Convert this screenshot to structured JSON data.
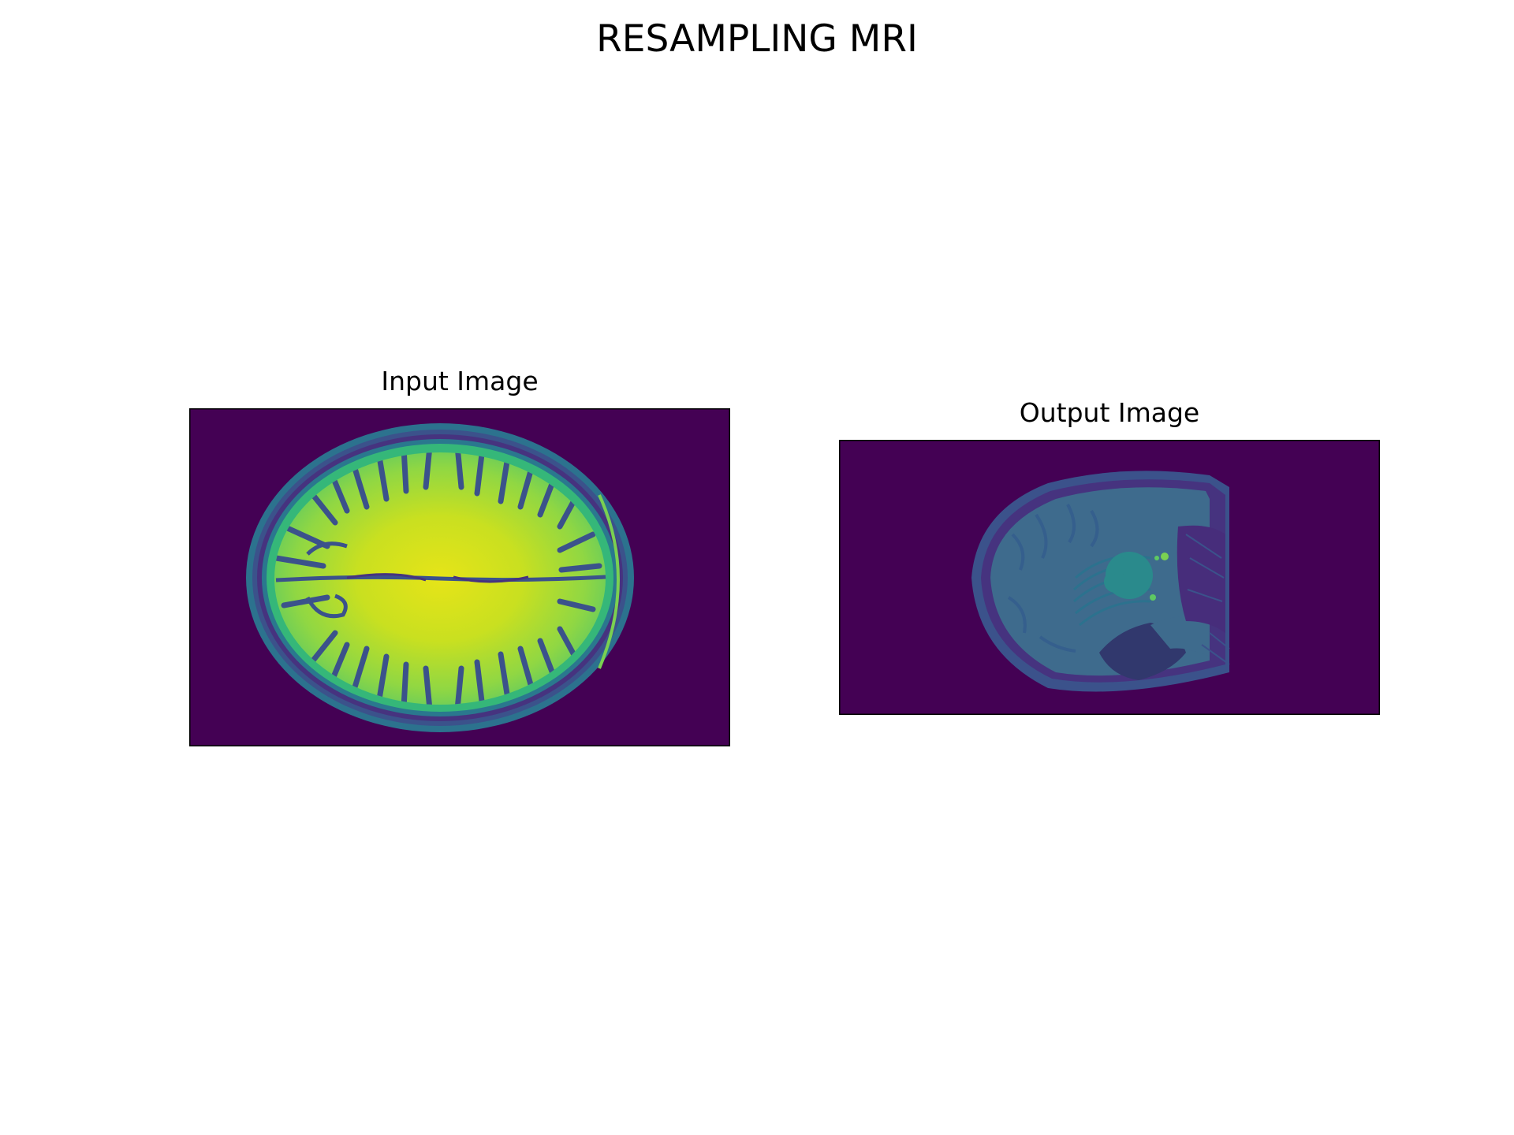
{
  "figure": {
    "title": "RESAMPLING MRI",
    "colormap": "viridis",
    "background_color": "#440154"
  },
  "panels": [
    {
      "title": "Input Image",
      "view": "axial brain slice (supraventricular level)"
    },
    {
      "title": "Output Image",
      "view": "resampled oblique slice through brainstem and cerebellum"
    }
  ]
}
